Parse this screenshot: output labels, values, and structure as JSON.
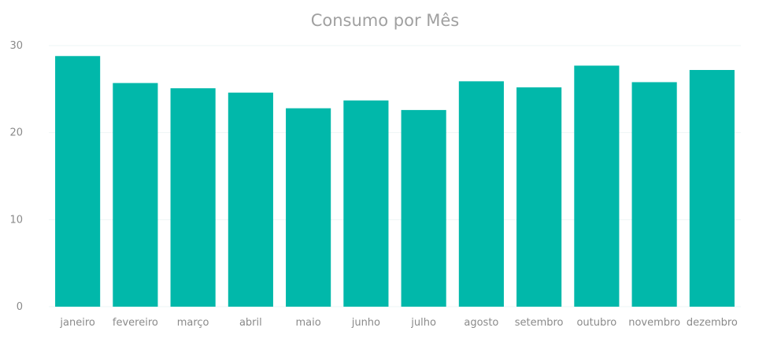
{
  "chart_data": {
    "type": "bar",
    "title": "Consumo por Mês",
    "xlabel": "",
    "ylabel": "",
    "categories": [
      "janeiro",
      "fevereiro",
      "março",
      "abril",
      "maio",
      "junho",
      "julho",
      "agosto",
      "setembro",
      "outubro",
      "novembro",
      "dezembro"
    ],
    "values": [
      28.8,
      25.7,
      25.1,
      24.6,
      22.8,
      23.7,
      22.6,
      25.9,
      25.2,
      27.7,
      25.8,
      27.2
    ],
    "ylim": [
      0,
      30
    ],
    "yticks": [
      0,
      10,
      20,
      30
    ],
    "grid": true,
    "colors": {
      "bar": "#01b8aa",
      "grid": "#eef4f5"
    }
  }
}
